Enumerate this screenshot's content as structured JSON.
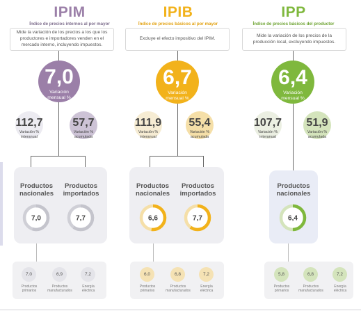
{
  "colors": {
    "ipim": "#9b7fa8",
    "ipim_light": "#cdc3d6",
    "ipib": "#f2b21b",
    "ipib_light": "#f5dfa8",
    "ipp": "#7fb83d",
    "ipp_light": "#d4e4bc",
    "panel_gray": "#eeeef2",
    "panel_blue": "#e9ecf6",
    "mini_panel": "#f1f1f3"
  },
  "sections": [
    {
      "id": "ipim",
      "title": "IPIM",
      "subtitle": "Índice de precios internos al por mayor",
      "description": "Mide la variación de los precios a los que los productores e importadores venden en el mercado interno, incluyendo impuestos.",
      "main": {
        "value": "7,0",
        "label": "Variación mensual %"
      },
      "interanual": {
        "value": "112,7",
        "label": "Variación % interanual"
      },
      "acumulada": {
        "value": "57,7",
        "label": "Variación % acumulada"
      },
      "products": [
        {
          "label": "Productos nacionales",
          "value": "7,0",
          "fraction": 0.55
        },
        {
          "label": "Productos importados",
          "value": "7,7",
          "fraction": 0.6
        }
      ],
      "sub": [
        {
          "value": "7,0",
          "label": "Productos primarios"
        },
        {
          "value": "6,9",
          "label": "Productos manufacturados"
        },
        {
          "value": "7,2",
          "label": "Energía eléctrica"
        }
      ]
    },
    {
      "id": "ipib",
      "title": "IPIB",
      "subtitle": "Índice de precios básicos al por mayor",
      "description": "Excluye el efecto impositivo del IPIM.",
      "main": {
        "value": "6,7",
        "label": "Variación mensual %"
      },
      "interanual": {
        "value": "111,9",
        "label": "Variación % interanual"
      },
      "acumulada": {
        "value": "55,4",
        "label": "Variación % acumulada"
      },
      "products": [
        {
          "label": "Productos nacionales",
          "value": "6,6",
          "fraction": 0.52
        },
        {
          "label": "Productos importados",
          "value": "7,7",
          "fraction": 0.6
        }
      ],
      "sub": [
        {
          "value": "6,0",
          "label": "Productos primarios"
        },
        {
          "value": "6,8",
          "label": "Productos manufacturados"
        },
        {
          "value": "7,2",
          "label": "Energía eléctrica"
        }
      ]
    },
    {
      "id": "ipp",
      "title": "IPP",
      "subtitle": "Índice de precios básicos del productor",
      "description": "Mide la variación de los precios de la producción local, excluyendo impuestos.",
      "main": {
        "value": "6,4",
        "label": "Variación mensual %"
      },
      "interanual": {
        "value": "107,7",
        "label": "Variación % interanual"
      },
      "acumulada": {
        "value": "51,9",
        "label": "Variación % acumulada"
      },
      "products": [
        {
          "label": "Productos nacionales",
          "value": "6,4",
          "fraction": 0.5
        }
      ],
      "sub": [
        {
          "value": "5,8",
          "label": "Productos primarios"
        },
        {
          "value": "6,8",
          "label": "Productos manufacturados"
        },
        {
          "value": "7,2",
          "label": "Energía eléctrica"
        }
      ]
    }
  ]
}
